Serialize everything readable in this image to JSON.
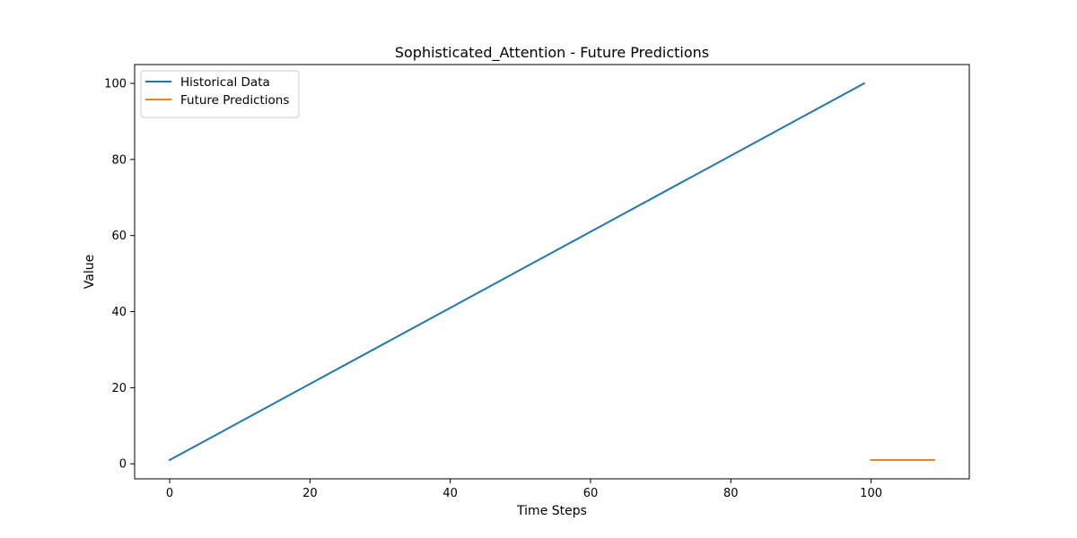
{
  "chart_data": {
    "type": "line",
    "title": "Sophisticated_Attention - Future Predictions",
    "xlabel": "Time Steps",
    "ylabel": "Value",
    "xlim": [
      -5,
      114
    ],
    "ylim": [
      -3.95,
      104.95
    ],
    "xticks": [
      0,
      20,
      40,
      60,
      80,
      100
    ],
    "yticks": [
      0,
      20,
      40,
      60,
      80,
      100
    ],
    "grid": false,
    "legend_position": "top-left",
    "series": [
      {
        "name": "Historical Data",
        "color": "#1f77b4",
        "x": [
          0,
          99
        ],
        "y": [
          1,
          100
        ]
      },
      {
        "name": "Future Predictions",
        "color": "#ff7f0e",
        "x": [
          100,
          109
        ],
        "y": [
          1,
          1
        ]
      }
    ]
  }
}
